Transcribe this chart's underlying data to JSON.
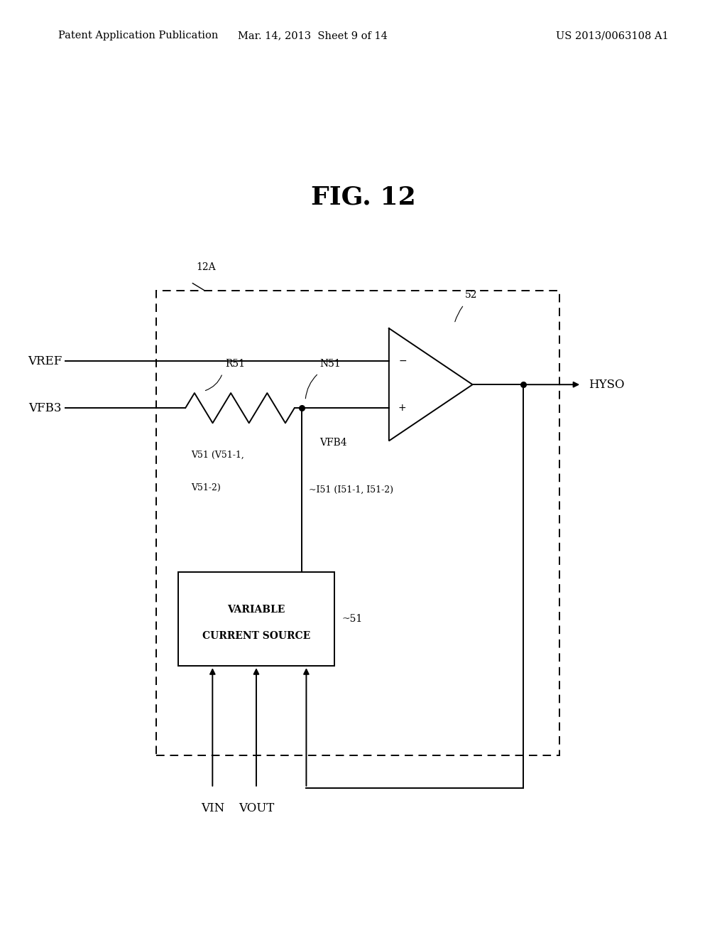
{
  "title": "FIG. 12",
  "header_left": "Patent Application Publication",
  "header_center": "Mar. 14, 2013  Sheet 9 of 14",
  "header_right": "US 2013/0063108 A1",
  "bg_color": "#ffffff",
  "text_color": "#000000",
  "fig_title_fontsize": 26,
  "header_fontsize": 10.5,
  "label_fontsize": 12,
  "note_fontsize": 10,
  "small_fontsize": 9
}
